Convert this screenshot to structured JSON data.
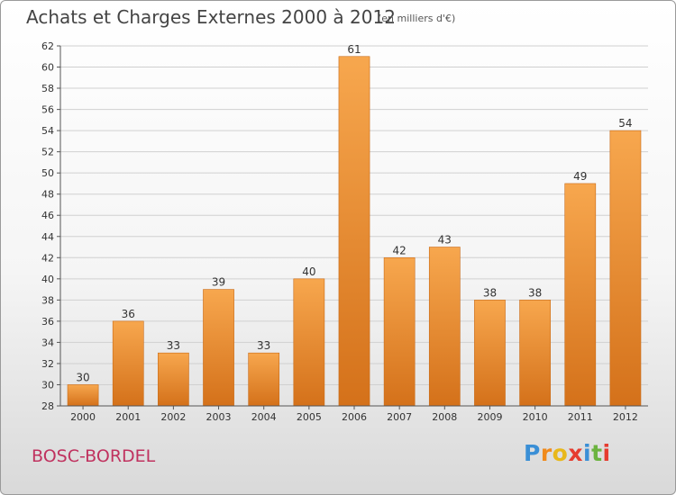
{
  "header": {
    "title": "Achats et Charges Externes 2000 à 2012",
    "subtitle": "(en milliers d'€)"
  },
  "footer": {
    "commune": "BOSC-BORDEL",
    "logo_letters": [
      "P",
      "r",
      "o",
      "x",
      "i",
      "t",
      "i"
    ],
    "logo_colors": [
      "#3a8fd6",
      "#f08a1c",
      "#e8b81a",
      "#e63c2f",
      "#3a8fd6",
      "#6cb33f",
      "#e63c2f"
    ]
  },
  "chart_data": {
    "type": "bar",
    "title": "Achats et Charges Externes 2000 à 2012",
    "subtitle": "(en milliers d'€)",
    "categories": [
      "2000",
      "2001",
      "2002",
      "2003",
      "2004",
      "2005",
      "2006",
      "2007",
      "2008",
      "2009",
      "2010",
      "2011",
      "2012"
    ],
    "values": [
      30,
      36,
      33,
      39,
      33,
      40,
      61,
      42,
      43,
      38,
      38,
      49,
      54
    ],
    "xlabel": "",
    "ylabel": "",
    "ylim": [
      28,
      62
    ],
    "yticks": [
      28,
      30,
      32,
      34,
      36,
      38,
      40,
      42,
      44,
      46,
      48,
      50,
      52,
      54,
      56,
      58,
      60,
      62
    ],
    "grid": true,
    "bar_color": "#f0912f"
  }
}
